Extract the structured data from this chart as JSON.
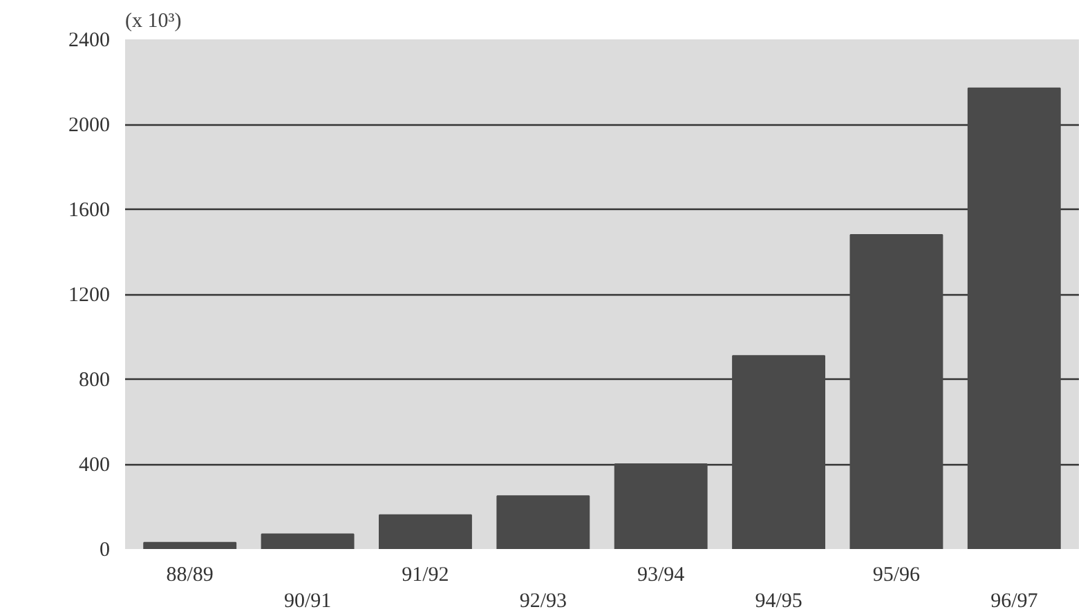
{
  "chart_data": {
    "type": "bar",
    "ylabel": "(x 10³)",
    "categories": [
      "88/89",
      "90/91",
      "91/92",
      "92/93",
      "93/94",
      "94/95",
      "95/96",
      "96/97"
    ],
    "values": [
      30,
      70,
      160,
      250,
      400,
      910,
      1480,
      2170
    ],
    "color": "#4a4a4a",
    "ylim": [
      0,
      2400
    ],
    "yticks": [
      0,
      400,
      800,
      1200,
      1600,
      2000,
      2400
    ],
    "grid": "y"
  }
}
